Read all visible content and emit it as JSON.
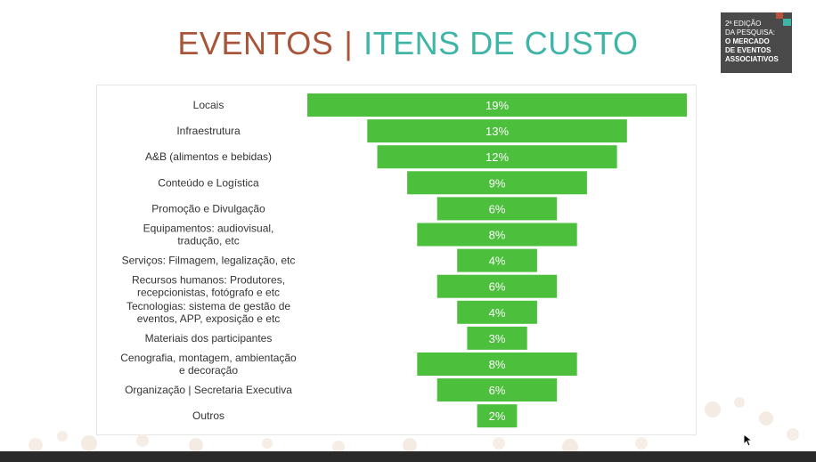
{
  "title": {
    "part1": "EVENTOS",
    "separator": "|",
    "part2": "ITENS DE CUSTO",
    "colors": {
      "part1": "#a9553a",
      "part2": "#3fb5a7"
    }
  },
  "badge": {
    "line1": "2ª EDIÇÃO",
    "line2": "DA PESQUISA:",
    "line3": "O MERCADO",
    "line4": "DE EVENTOS",
    "line5": "ASSOCIATIVOS"
  },
  "colors": {
    "bar": "#4cbf3d",
    "label": "#333333",
    "bar_text": "#ffffff"
  },
  "chart_data": {
    "type": "bar",
    "orientation": "horizontal-funnel",
    "title": "",
    "xlabel": "",
    "ylabel": "",
    "xlim": [
      0,
      19
    ],
    "grid": false,
    "categories": [
      "Locais",
      "Infraestrutura",
      "A&B (alimentos e bebidas)",
      "Conteúdo e Logística",
      "Promoção e Divulgação",
      "Equipamentos: audiovisual, tradução, etc",
      "Serviços: Filmagem, legalização, etc",
      "Recursos humanos: Produtores, recepcionistas, fotógrafo e etc",
      "Tecnologias: sistema de gestão de eventos, APP, exposição e etc",
      "Materiais dos participantes",
      "Cenografia, montagem, ambientação e decoração",
      "Organização | Secretaria Executiva",
      "Outros"
    ],
    "category_label_lines": [
      [
        "Locais"
      ],
      [
        "Infraestrutura"
      ],
      [
        "A&B (alimentos e bebidas)"
      ],
      [
        "Conteúdo e Logística"
      ],
      [
        "Promoção e Divulgação"
      ],
      [
        "Equipamentos: audiovisual,",
        "tradução, etc"
      ],
      [
        "Serviços: Filmagem, legalização, etc"
      ],
      [
        "Recursos humanos: Produtores,",
        "recepcionistas, fotógrafo e etc"
      ],
      [
        "Tecnologias: sistema de gestão de",
        "eventos, APP, exposição e etc"
      ],
      [
        "Materiais dos participantes"
      ],
      [
        "Cenografia, montagem, ambientação",
        "e decoração"
      ],
      [
        "Organização | Secretaria Executiva"
      ],
      [
        "Outros"
      ]
    ],
    "values": [
      19,
      13,
      12,
      9,
      6,
      8,
      4,
      6,
      4,
      3,
      8,
      6,
      2
    ],
    "data_labels": [
      "19%",
      "13%",
      "12%",
      "9%",
      "6%",
      "8%",
      "4%",
      "6%",
      "4%",
      "3%",
      "8%",
      "6%",
      "2%"
    ]
  }
}
